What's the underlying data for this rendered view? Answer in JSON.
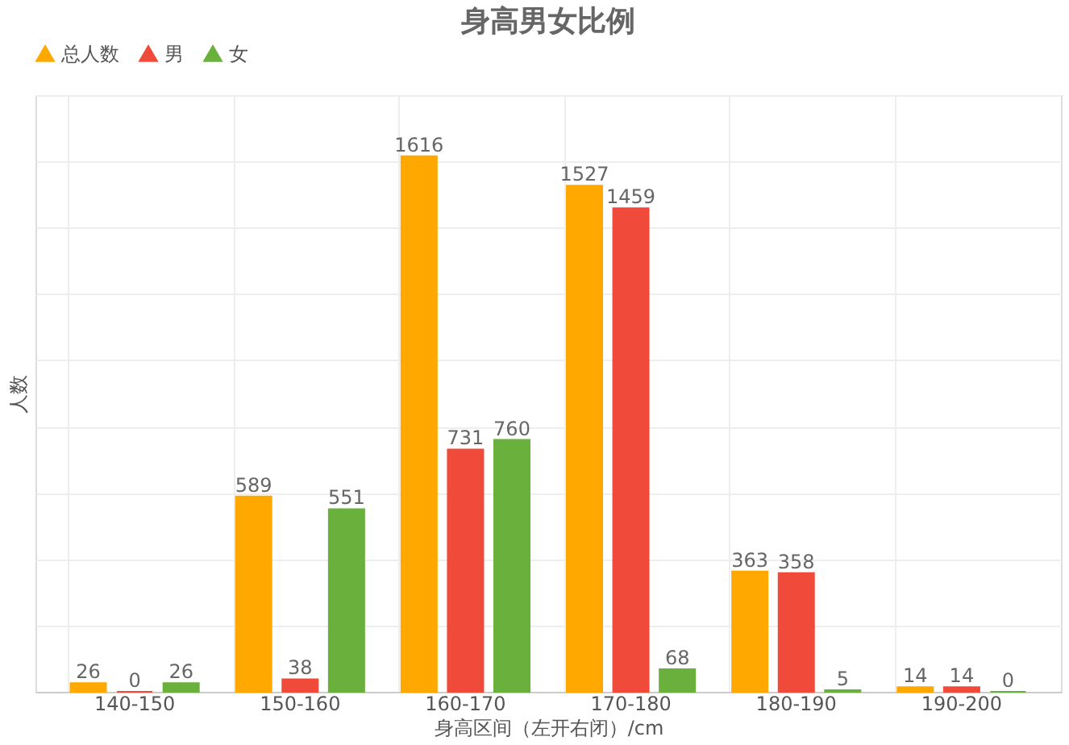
{
  "chart_data": {
    "type": "bar",
    "title": "身高男女比例",
    "xlabel": "身高区间（左开右闭）/cm",
    "ylabel": "人数",
    "categories": [
      "140-150",
      "150-160",
      "160-170",
      "170-180",
      "180-190",
      "190-200"
    ],
    "series": [
      {
        "name": "总人数",
        "color": "#ffa800",
        "values": [
          26,
          589,
          1616,
          1527,
          363,
          14
        ]
      },
      {
        "name": "男",
        "color": "#f04b3a",
        "values": [
          0,
          38,
          731,
          1459,
          358,
          14
        ]
      },
      {
        "name": "女",
        "color": "#6ab03c",
        "values": [
          26,
          551,
          760,
          68,
          5,
          0
        ]
      }
    ],
    "ylim": [
      0,
      1800
    ],
    "yticks": [
      {
        "value": 0,
        "label": null
      },
      {
        "value": 200,
        "label": null
      },
      {
        "value": 400,
        "label": null
      },
      {
        "value": 600,
        "label": null
      },
      {
        "value": 800,
        "label": null
      },
      {
        "value": 1000,
        "label": null
      },
      {
        "value": 1200,
        "label": null
      },
      {
        "value": 1400,
        "label": null
      },
      {
        "value": 1600,
        "label": null
      },
      {
        "value": 1800,
        "label": null
      }
    ],
    "tick_labels": "x",
    "grid": true,
    "legend": "top",
    "marker": "triangle",
    "data_labels": true
  }
}
